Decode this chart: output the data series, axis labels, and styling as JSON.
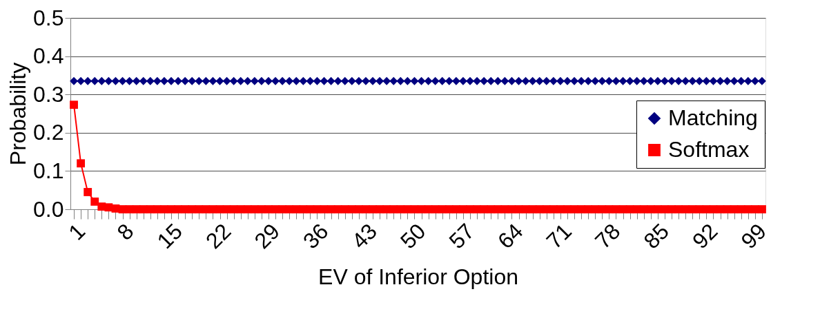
{
  "chart_data": {
    "type": "line",
    "xlabel": "EV of Inferior Option",
    "ylabel": "Probability",
    "categories": [
      "1",
      null,
      null,
      null,
      null,
      null,
      null,
      "8",
      null,
      null,
      null,
      null,
      null,
      null,
      "15",
      null,
      null,
      null,
      null,
      null,
      null,
      "22",
      null,
      null,
      null,
      null,
      null,
      null,
      "29",
      null,
      null,
      null,
      null,
      null,
      null,
      "36",
      null,
      null,
      null,
      null,
      null,
      null,
      "43",
      null,
      null,
      null,
      null,
      null,
      null,
      "50",
      null,
      null,
      null,
      null,
      null,
      null,
      "57",
      null,
      null,
      null,
      null,
      null,
      null,
      "64",
      null,
      null,
      null,
      null,
      null,
      null,
      "71",
      null,
      null,
      null,
      null,
      null,
      null,
      "78",
      null,
      null,
      null,
      null,
      null,
      null,
      "85",
      null,
      null,
      null,
      null,
      null,
      null,
      "92",
      null,
      null,
      null,
      null,
      null,
      null,
      "99",
      null
    ],
    "series": [
      {
        "name": "Matching",
        "color": "#000080",
        "marker": "diamond",
        "values": [
          0.335,
          0.335,
          0.335,
          0.335,
          0.335,
          0.335,
          0.335,
          0.335,
          0.335,
          0.335,
          0.335,
          0.335,
          0.335,
          0.335,
          0.335,
          0.335,
          0.335,
          0.335,
          0.335,
          0.335,
          0.335,
          0.335,
          0.335,
          0.335,
          0.335,
          0.335,
          0.335,
          0.335,
          0.335,
          0.335,
          0.335,
          0.335,
          0.335,
          0.335,
          0.335,
          0.335,
          0.335,
          0.335,
          0.335,
          0.335,
          0.335,
          0.335,
          0.335,
          0.335,
          0.335,
          0.335,
          0.335,
          0.335,
          0.335,
          0.335,
          0.335,
          0.335,
          0.335,
          0.335,
          0.335,
          0.335,
          0.335,
          0.335,
          0.335,
          0.335,
          0.335,
          0.335,
          0.335,
          0.335,
          0.335,
          0.335,
          0.335,
          0.335,
          0.335,
          0.335,
          0.335,
          0.335,
          0.335,
          0.335,
          0.335,
          0.335,
          0.335,
          0.335,
          0.335,
          0.335,
          0.335,
          0.335,
          0.335,
          0.335,
          0.335,
          0.335,
          0.335,
          0.335,
          0.335,
          0.335,
          0.335,
          0.335,
          0.335,
          0.335,
          0.335,
          0.335,
          0.335,
          0.335,
          0.335,
          0.335
        ]
      },
      {
        "name": "Softmax",
        "color": "#ff0000",
        "marker": "square",
        "values": [
          0.273,
          0.12,
          0.045,
          0.02,
          0.007,
          0.005,
          0.002,
          0,
          0,
          0,
          0,
          0,
          0,
          0,
          0,
          0,
          0,
          0,
          0,
          0,
          0,
          0,
          0,
          0,
          0,
          0,
          0,
          0,
          0,
          0,
          0,
          0,
          0,
          0,
          0,
          0,
          0,
          0,
          0,
          0,
          0,
          0,
          0,
          0,
          0,
          0,
          0,
          0,
          0,
          0,
          0,
          0,
          0,
          0,
          0,
          0,
          0,
          0,
          0,
          0,
          0,
          0,
          0,
          0,
          0,
          0,
          0,
          0,
          0,
          0,
          0,
          0,
          0,
          0,
          0,
          0,
          0,
          0,
          0,
          0,
          0,
          0,
          0,
          0,
          0,
          0,
          0,
          0,
          0,
          0,
          0,
          0,
          0,
          0,
          0,
          0,
          0,
          0,
          0,
          0
        ]
      }
    ],
    "ylim": [
      0,
      0.5
    ],
    "yticks": [
      {
        "value": 0,
        "label": "0.0"
      },
      {
        "value": 0.1,
        "label": "0.1"
      },
      {
        "value": 0.2,
        "label": "0.2"
      },
      {
        "value": 0.3,
        "label": "0.3"
      },
      {
        "value": 0.4,
        "label": "0.4"
      },
      {
        "value": 0.5,
        "label": "0.5"
      }
    ],
    "grid": "y",
    "legend": "right",
    "line_style": "solid"
  }
}
